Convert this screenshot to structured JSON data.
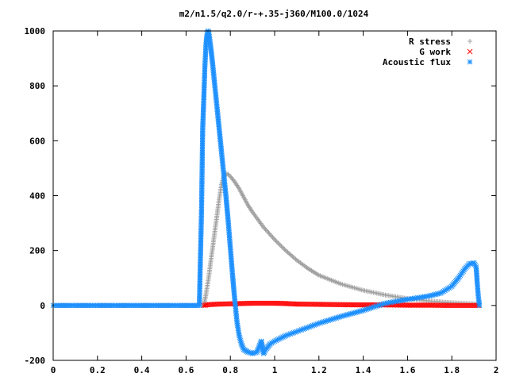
{
  "chart_data": {
    "type": "scatter",
    "title": "m2/n1.5/q2.0/r-+.35-j360/M100.0/1024",
    "xlabel": "",
    "ylabel": "",
    "xlim": [
      0,
      2
    ],
    "ylim": [
      -200,
      1000
    ],
    "x_ticks": [
      "0",
      "0.2",
      "0.4",
      "0.6",
      "0.8",
      "1",
      "1.2",
      "1.4",
      "1.6",
      "1.8",
      "2"
    ],
    "y_ticks": [
      "-200",
      "0",
      "200",
      "400",
      "600",
      "800",
      "1000"
    ],
    "grid": false,
    "legend_position": "top-right",
    "series": [
      {
        "name": "R stress",
        "marker": "plus",
        "color": "#a0a0a0",
        "points": [
          [
            0,
            0
          ],
          [
            0.66,
            0
          ],
          [
            0.68,
            0
          ],
          [
            0.69,
            40
          ],
          [
            0.7,
            90
          ],
          [
            0.71,
            150
          ],
          [
            0.72,
            210
          ],
          [
            0.73,
            270
          ],
          [
            0.74,
            330
          ],
          [
            0.75,
            390
          ],
          [
            0.76,
            440
          ],
          [
            0.77,
            470
          ],
          [
            0.78,
            480
          ],
          [
            0.79,
            478
          ],
          [
            0.8,
            470
          ],
          [
            0.82,
            450
          ],
          [
            0.84,
            425
          ],
          [
            0.86,
            395
          ],
          [
            0.88,
            365
          ],
          [
            0.9,
            340
          ],
          [
            0.95,
            285
          ],
          [
            1.0,
            240
          ],
          [
            1.05,
            200
          ],
          [
            1.1,
            165
          ],
          [
            1.15,
            135
          ],
          [
            1.2,
            110
          ],
          [
            1.3,
            78
          ],
          [
            1.4,
            55
          ],
          [
            1.5,
            38
          ],
          [
            1.6,
            25
          ],
          [
            1.7,
            16
          ],
          [
            1.8,
            10
          ],
          [
            1.85,
            8
          ],
          [
            1.9,
            6
          ],
          [
            1.92,
            5
          ]
        ]
      },
      {
        "name": "G work",
        "marker": "cross",
        "color": "#ff0000",
        "points": [
          [
            0.68,
            0
          ],
          [
            0.7,
            3
          ],
          [
            0.75,
            5
          ],
          [
            0.8,
            6
          ],
          [
            0.9,
            8
          ],
          [
            1.0,
            8
          ],
          [
            1.05,
            7
          ],
          [
            1.1,
            5
          ],
          [
            1.2,
            4
          ],
          [
            1.3,
            3
          ],
          [
            1.4,
            2
          ],
          [
            1.5,
            2
          ],
          [
            1.6,
            1
          ],
          [
            1.7,
            1
          ],
          [
            1.8,
            0
          ],
          [
            1.92,
            0
          ]
        ]
      },
      {
        "name": "Acoustic flux",
        "marker": "star",
        "color": "#1e90ff",
        "points": [
          [
            0,
            0
          ],
          [
            0.2,
            0
          ],
          [
            0.4,
            0
          ],
          [
            0.6,
            0
          ],
          [
            0.66,
            0
          ],
          [
            0.67,
            350
          ],
          [
            0.675,
            640
          ],
          [
            0.68,
            750
          ],
          [
            0.685,
            870
          ],
          [
            0.69,
            950
          ],
          [
            0.695,
            990
          ],
          [
            0.7,
            1000
          ],
          [
            0.705,
            980
          ],
          [
            0.71,
            950
          ],
          [
            0.72,
            880
          ],
          [
            0.73,
            800
          ],
          [
            0.74,
            720
          ],
          [
            0.75,
            640
          ],
          [
            0.76,
            560
          ],
          [
            0.77,
            480
          ],
          [
            0.78,
            400
          ],
          [
            0.79,
            310
          ],
          [
            0.8,
            210
          ],
          [
            0.81,
            110
          ],
          [
            0.82,
            20
          ],
          [
            0.83,
            -60
          ],
          [
            0.84,
            -110
          ],
          [
            0.85,
            -140
          ],
          [
            0.86,
            -160
          ],
          [
            0.87,
            -165
          ],
          [
            0.88,
            -170
          ],
          [
            0.9,
            -175
          ],
          [
            0.92,
            -170
          ],
          [
            0.93,
            -150
          ],
          [
            0.94,
            -130
          ],
          [
            0.95,
            -175
          ],
          [
            0.96,
            -160
          ],
          [
            0.98,
            -140
          ],
          [
            1.0,
            -130
          ],
          [
            1.05,
            -110
          ],
          [
            1.1,
            -95
          ],
          [
            1.15,
            -80
          ],
          [
            1.2,
            -65
          ],
          [
            1.3,
            -40
          ],
          [
            1.4,
            -18
          ],
          [
            1.45,
            -5
          ],
          [
            1.5,
            8
          ],
          [
            1.6,
            22
          ],
          [
            1.7,
            35
          ],
          [
            1.75,
            45
          ],
          [
            1.8,
            70
          ],
          [
            1.83,
            100
          ],
          [
            1.86,
            135
          ],
          [
            1.88,
            152
          ],
          [
            1.9,
            155
          ],
          [
            1.91,
            140
          ],
          [
            1.915,
            80
          ],
          [
            1.92,
            30
          ],
          [
            1.925,
            0
          ]
        ]
      }
    ]
  }
}
